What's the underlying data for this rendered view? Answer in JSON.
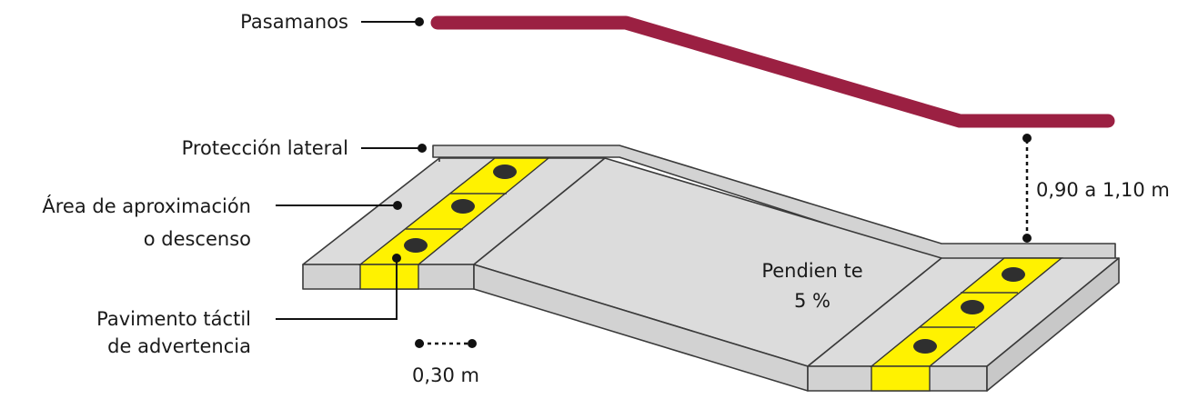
{
  "labels": {
    "handrail": "Pasamanos",
    "side_protection": "Protección lateral",
    "approach_area_line1": "Área de aproximación",
    "approach_area_line2": "o descenso",
    "tactile_paving_line1": "Pavimento táctil",
    "tactile_paving_line2": "de advertencia",
    "slope_line1": "Pendien te",
    "slope_line2": "5 %",
    "handrail_height": "0,90 a 1,10 m",
    "tactile_width": "0,30 m"
  },
  "colors": {
    "handrail": "#9b2042",
    "tactile": "#fff200",
    "surface_top": "#dcdcdc",
    "surface_side": "#d0d0d0",
    "outline": "#3a3a3a",
    "text": "#1a1a1a"
  }
}
